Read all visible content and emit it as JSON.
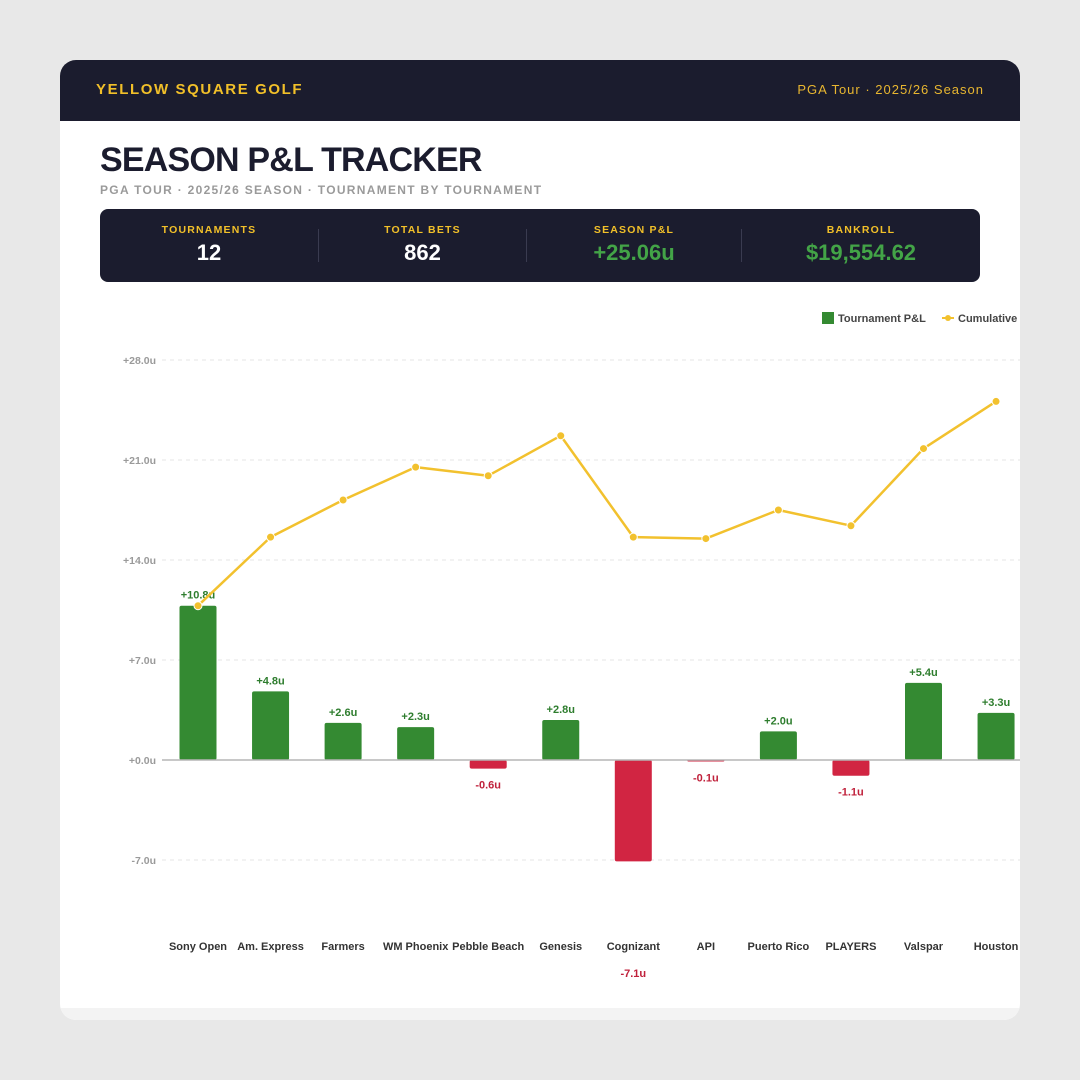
{
  "header": {
    "brand": "YELLOW SQUARE GOLF",
    "season_tag": "PGA Tour · 2025/26 Season"
  },
  "page": {
    "title": "SEASON P&L TRACKER",
    "subtitle": "PGA TOUR · 2025/26 SEASON · TOURNAMENT BY TOURNAMENT"
  },
  "stats": [
    {
      "label": "TOURNAMENTS",
      "value": "12",
      "positive": false
    },
    {
      "label": "TOTAL BETS",
      "value": "862",
      "positive": false
    },
    {
      "label": "SEASON P&L",
      "value": "+25.06u",
      "positive": true
    },
    {
      "label": "BANKROLL",
      "value": "$19,554.62",
      "positive": true
    }
  ],
  "colors": {
    "navy": "#1b1c2e",
    "gold": "#f2c029",
    "positive_bar": "#348a32",
    "negative_bar": "#d12542",
    "cumulative_line": "#f2c12e",
    "positive_text": "#43a447"
  },
  "chart_data": {
    "type": "bar",
    "categories": [
      "Sony Open",
      "Am. Express",
      "Farmers",
      "WM Phoenix",
      "Pebble Beach",
      "Genesis",
      "Cognizant",
      "API",
      "Puerto Rico",
      "PLAYERS",
      "Valspar",
      "Houston"
    ],
    "series": [
      {
        "name": "Tournament P&L",
        "type": "bar",
        "values": [
          10.8,
          4.8,
          2.6,
          2.3,
          -0.6,
          2.8,
          -7.1,
          -0.1,
          2.0,
          -1.1,
          5.4,
          3.3
        ],
        "labels": [
          "+10.8u",
          "+4.8u",
          "+2.6u",
          "+2.3u",
          "-0.6u",
          "+2.8u",
          "-7.1u",
          "-0.1u",
          "+2.0u",
          "-1.1u",
          "+5.4u",
          "+3.3u"
        ]
      },
      {
        "name": "Cumulative",
        "type": "line",
        "values": [
          10.8,
          15.6,
          18.2,
          20.5,
          19.9,
          22.7,
          15.6,
          15.5,
          17.5,
          16.4,
          21.8,
          25.1
        ]
      }
    ],
    "yticks": [
      28,
      21,
      14,
      7,
      0,
      -7
    ],
    "ytick_labels": [
      "+28.0u",
      "+21.0u",
      "+14.0u",
      "+7.0u",
      "+0.0u",
      "-7.0u"
    ],
    "ylim": [
      -7,
      28
    ],
    "grid": true,
    "legend": "top-right",
    "xlabel": "",
    "ylabel": ""
  }
}
